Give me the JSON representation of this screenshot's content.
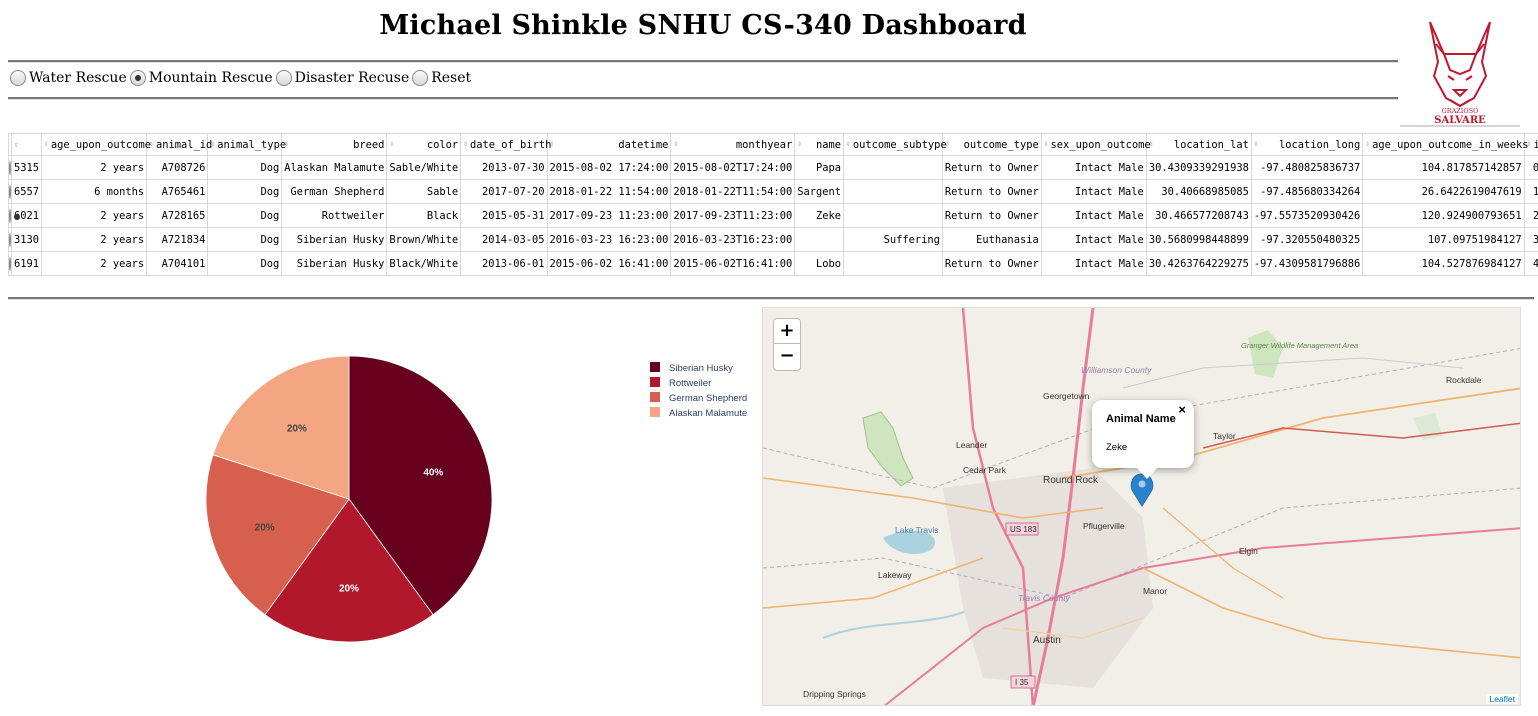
{
  "header": {
    "title": "Michael Shinkle SNHU CS-340 Dashboard"
  },
  "logo": {
    "top_text": "GRAZIOSO",
    "bottom_text": "SALVARE",
    "color": "#c0182f"
  },
  "filters": {
    "options": [
      "Water Rescue",
      "Mountain Rescue",
      "Disaster Recuse",
      "Reset"
    ],
    "selected": "Mountain Rescue"
  },
  "table": {
    "columns": [
      "",
      "age_upon_outcome",
      "animal_id",
      "animal_type",
      "breed",
      "color",
      "date_of_birth",
      "datetime",
      "monthyear",
      "name",
      "outcome_subtype",
      "outcome_type",
      "sex_upon_outcome",
      "location_lat",
      "location_long",
      "age_upon_outcome_in_weeks",
      "id"
    ],
    "selected_row": 2,
    "rows": [
      [
        "5315",
        "2 years",
        "A708726",
        "Dog",
        "Alaskan Malamute",
        "Sable/White",
        "2013-07-30",
        "2015-08-02 17:24:00",
        "2015-08-02T17:24:00",
        "Papa",
        "",
        "Return to Owner",
        "Intact Male",
        "30.4309339291938",
        "-97.480825836737",
        "104.817857142857",
        "0"
      ],
      [
        "6557",
        "6 months",
        "A765461",
        "Dog",
        "German Shepherd",
        "Sable",
        "2017-07-20",
        "2018-01-22 11:54:00",
        "2018-01-22T11:54:00",
        "Sargent",
        "",
        "Return to Owner",
        "Intact Male",
        "30.40668985085",
        "-97.485680334264",
        "26.6422619047619",
        "1"
      ],
      [
        "6021",
        "2 years",
        "A728165",
        "Dog",
        "Rottweiler",
        "Black",
        "2015-05-31",
        "2017-09-23 11:23:00",
        "2017-09-23T11:23:00",
        "Zeke",
        "",
        "Return to Owner",
        "Intact Male",
        "30.466577208743",
        "-97.5573520930426",
        "120.924900793651",
        "2"
      ],
      [
        "3130",
        "2 years",
        "A721834",
        "Dog",
        "Siberian Husky",
        "Brown/White",
        "2014-03-05",
        "2016-03-23 16:23:00",
        "2016-03-23T16:23:00",
        "",
        "Suffering",
        "Euthanasia",
        "Intact Male",
        "30.5680998448899",
        "-97.320550480325",
        "107.09751984127",
        "3"
      ],
      [
        "6191",
        "2 years",
        "A704101",
        "Dog",
        "Siberian Husky",
        "Black/White",
        "2013-06-01",
        "2015-06-02 16:41:00",
        "2015-06-02T16:41:00",
        "Lobo",
        "",
        "Return to Owner",
        "Intact Male",
        "30.4263764229275",
        "-97.4309581796886",
        "104.527876984127",
        "4"
      ]
    ]
  },
  "chart_data": {
    "type": "pie",
    "categories": [
      "Siberian Husky",
      "Rottweiler",
      "German Shepherd",
      "Alaskan Malamute"
    ],
    "values": [
      40,
      20,
      20,
      20
    ],
    "labels": [
      "40%",
      "20%",
      "20%",
      "20%"
    ],
    "colors": [
      "#67001f",
      "#b2182b",
      "#d6604d",
      "#f4a582"
    ],
    "legend": "right"
  },
  "map": {
    "zoom_in": "+",
    "zoom_out": "−",
    "popup_title": "Animal Name",
    "popup_body": "Zeke",
    "popup_close": "×",
    "attribution": "Leaflet",
    "places": [
      "Georgetown",
      "Leander",
      "Cedar Park",
      "Round Rock",
      "Pflugerville",
      "Taylor",
      "Lake Travis",
      "Lakeway",
      "Austin",
      "Manor",
      "Elgin",
      "Rockdale",
      "Dripping Springs",
      "Granger Wildlife Management Area",
      "Williamson County",
      "Travis County",
      "US 183",
      "I 35"
    ]
  }
}
